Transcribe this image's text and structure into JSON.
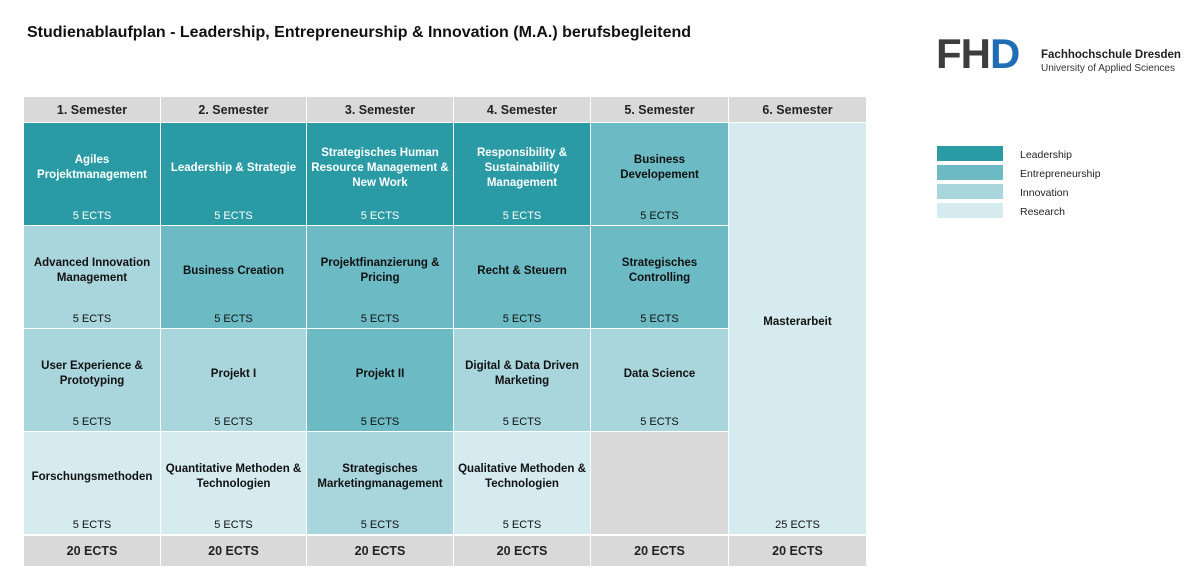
{
  "title": "Studienablaufplan - Leadership, Entrepreneurship & Innovation (M.A.) berufsbegleitend",
  "logo": {
    "mark_a": "FH",
    "mark_b": "D",
    "name": "Fachhochschule Dresden",
    "subtitle": "University of Applied Sciences",
    "colors": {
      "mark": "#3d3d3d",
      "accent": "#1f6db5"
    }
  },
  "colors": {
    "Leadership": "#2a9aa5",
    "Entrepreneurship": "#6bbac4",
    "Innovation": "#a9d6dd",
    "Research": "#d5ebef",
    "header": "#d9d9d9"
  },
  "headers": [
    "1. Semester",
    "2. Semester",
    "3. Semester",
    "4. Semester",
    "5. Semester",
    "6. Semester"
  ],
  "rows": [
    [
      {
        "name": "Agiles Projektmanagement",
        "ects": "5 ECTS",
        "type": "lead"
      },
      {
        "name": "Leadership & Strategie",
        "ects": "5 ECTS",
        "type": "lead"
      },
      {
        "name": "Strategisches Human Resource Management & New Work",
        "ects": "5 ECTS",
        "type": "lead"
      },
      {
        "name": "Responsibility & Sustainability Management",
        "ects": "5 ECTS",
        "type": "lead"
      },
      {
        "name": "Business Developement",
        "ects": "5 ECTS",
        "type": "entr"
      }
    ],
    [
      {
        "name": "Advanced Innovation Management",
        "ects": "5 ECTS",
        "type": "innov"
      },
      {
        "name": "Business Creation",
        "ects": "5 ECTS",
        "type": "entr"
      },
      {
        "name": "Projektfinanzierung & Pricing",
        "ects": "5 ECTS",
        "type": "entr"
      },
      {
        "name": "Recht & Steuern",
        "ects": "5 ECTS",
        "type": "entr"
      },
      {
        "name": "Strategisches Controlling",
        "ects": "5 ECTS",
        "type": "entr"
      }
    ],
    [
      {
        "name": "User Experience & Prototyping",
        "ects": "5 ECTS",
        "type": "innov"
      },
      {
        "name": "Projekt I",
        "ects": "5 ECTS",
        "type": "innov"
      },
      {
        "name": "Projekt II",
        "ects": "5 ECTS",
        "type": "entr"
      },
      {
        "name": "Digital & Data Driven Marketing",
        "ects": "5 ECTS",
        "type": "innov"
      },
      {
        "name": "Data Science",
        "ects": "5 ECTS",
        "type": "innov"
      }
    ],
    [
      {
        "name": "Forschungsmethoden",
        "ects": "5 ECTS",
        "type": "res"
      },
      {
        "name": "Quantitative Methoden & Technologien",
        "ects": "5 ECTS",
        "type": "res"
      },
      {
        "name": "Strategisches Marketingmanagement",
        "ects": "5 ECTS",
        "type": "innov"
      },
      {
        "name": "Qualitative Methoden & Technologien",
        "ects": "5 ECTS",
        "type": "res"
      },
      {
        "name": "",
        "ects": "",
        "type": "empty"
      }
    ]
  ],
  "master": {
    "name": "Masterarbeit",
    "ects": "25 ECTS"
  },
  "totals": [
    "20 ECTS",
    "20 ECTS",
    "20 ECTS",
    "20 ECTS",
    "20 ECTS",
    "20 ECTS"
  ],
  "legend": [
    {
      "label": "Leadership",
      "type": "lead"
    },
    {
      "label": "Entrepreneurship",
      "type": "entr"
    },
    {
      "label": "Innovation",
      "type": "innov"
    },
    {
      "label": "Research",
      "type": "res"
    }
  ]
}
